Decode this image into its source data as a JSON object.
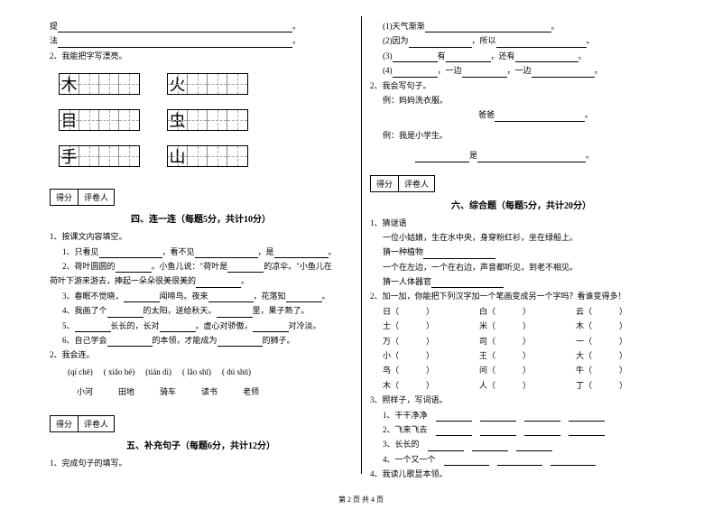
{
  "left": {
    "ti": "提",
    "fa": "法",
    "q2": "2、我能把字写漂亮。",
    "chars": [
      "木",
      "火",
      "目",
      "虫",
      "手",
      "山"
    ],
    "scorebox": {
      "score": "得分",
      "grader": "评卷人"
    },
    "sec4_title": "四、连一连（每题5分，共计10分）",
    "q1": "1、按课文内容填空。",
    "q1_1": "1、只看见",
    "q1_1b": "，看不见",
    "q1_1c": "，是",
    "q1_2": "2、荷叶圆圆的",
    "q1_2b": "。小鱼儿说：\"荷叶是",
    "q1_2c": "的凉伞。\"小鱼儿在",
    "q1_2d": "荷叶下游来游去，捧起一朵朵很美很美的",
    "q1_3": "3、春眠不觉晓，",
    "q1_3b": "闻啼鸟。夜来",
    "q1_3c": "，花落知",
    "q1_4": "4、我画了个",
    "q1_4b": "的太阳，送给秋天。",
    "q1_4c": "里，果子熟了。",
    "q1_5": "5、",
    "q1_5b": "长长的，长对",
    "q1_5c": "。虚心对骄傲，",
    "q1_5d": "对冷淡。",
    "q1_6": "6、自己学会",
    "q1_6b": "的本领，才能成为",
    "q1_6c": "的狮子。",
    "q2b": "2、我会连。",
    "pinyin": [
      "(qí chē)",
      "( xiǎo hé)",
      "(tián dì)",
      "( lǎo shī)",
      "( dú shū)"
    ],
    "words": [
      "小河",
      "田地",
      "骑车",
      "读书",
      "老师"
    ],
    "sec5_title": "五、补充句子（每题6分，共计12分）",
    "q5_1": "1、完成句子的填写。"
  },
  "right": {
    "r1": "(1)天气渐渐",
    "r2a": "(2)因为",
    "r2b": "，所以",
    "r3a": "(3)",
    "r3b": "有",
    "r3c": "，还有",
    "r4a": "(4)",
    "r4b": "，一边",
    "r4c": "，一边",
    "q2": "2、我会写句子。",
    "ex1": "例：妈妈洗衣服。",
    "ex1b": "爸爸",
    "ex2": "例：我是小学生。",
    "ex2b": "是",
    "scorebox": {
      "score": "得分",
      "grader": "评卷人"
    },
    "sec6_title": "六、综合题（每题5分，共计20分）",
    "q1": "1、猜谜语",
    "q1_a": "一位小姑娘，生在水中央，身穿粉红衫，坐在绿船上。",
    "q1_b": "猜一种植物",
    "q1_c": "一个在左边，一个在右边，声音都听见，到老不相见。",
    "q1_d": "猜一人体器官",
    "q2r": "2、加一加，你能把下列汉字加一个笔画变成另一个字吗？看谁变得多！",
    "chars_table": [
      [
        "日（",
        "）",
        "白（",
        "）",
        "云（",
        "）"
      ],
      [
        "土（",
        "）",
        "米（",
        "）",
        "木（",
        "）"
      ],
      [
        "万（",
        "）",
        "司（",
        "）",
        "一（",
        "）"
      ],
      [
        "小（",
        "）",
        "王（",
        "）",
        "大（",
        "）"
      ],
      [
        "鸟（",
        "）",
        "问（",
        "）",
        "牛（",
        "）"
      ],
      [
        "木（",
        "）",
        "人（",
        "）",
        "丁（",
        "）"
      ]
    ],
    "q3": "3、照样子，写词语。",
    "q3_1": "1、干干净净",
    "q3_2": "2、飞来飞去",
    "q3_3": "3、长长的",
    "q3_4": "4、一个又一个",
    "q4": "4、我读儿歌显本领。"
  },
  "footer": "第 2 页 共 4 页"
}
